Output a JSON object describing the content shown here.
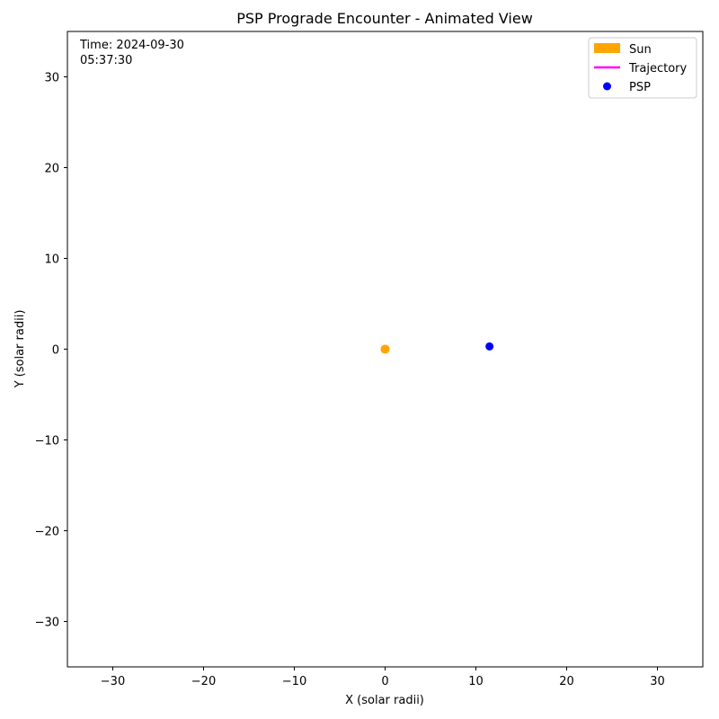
{
  "chart_data": {
    "type": "scatter",
    "title": "PSP Prograde Encounter - Animated View",
    "xlabel": "X (solar radii)",
    "ylabel": "Y (solar radii)",
    "xlim": [
      -35,
      35
    ],
    "ylim": [
      -35,
      35
    ],
    "xticks": [
      -30,
      -20,
      -10,
      0,
      10,
      20,
      30
    ],
    "yticks": [
      -30,
      -20,
      -10,
      0,
      10,
      20,
      30
    ],
    "xtick_labels": [
      "−30",
      "−20",
      "−10",
      "0",
      "10",
      "20",
      "30"
    ],
    "ytick_labels": [
      "−30",
      "−20",
      "−10",
      "0",
      "10",
      "20",
      "30"
    ],
    "grid": false,
    "legend_position": "top-right",
    "annotation": {
      "line1": "Time: 2024-09-30",
      "line2": "05:37:30"
    },
    "series": [
      {
        "name": "Sun",
        "kind": "patch",
        "color": "#ffa500",
        "x": [
          0.0
        ],
        "y": [
          0.0
        ],
        "radius": 0.5
      },
      {
        "name": "Trajectory",
        "kind": "line",
        "color": "#ff00ff",
        "x": [],
        "y": []
      },
      {
        "name": "PSP",
        "kind": "marker",
        "color": "#0000ff",
        "x": [
          11.5
        ],
        "y": [
          0.3
        ]
      }
    ]
  }
}
